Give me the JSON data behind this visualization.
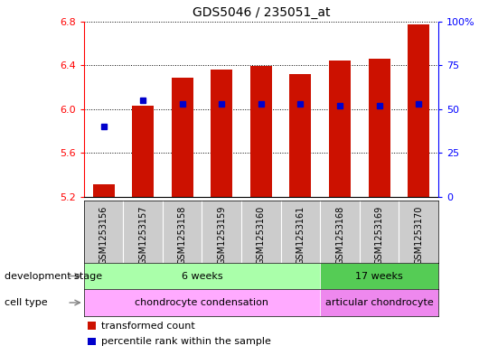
{
  "title": "GDS5046 / 235051_at",
  "samples": [
    "GSM1253156",
    "GSM1253157",
    "GSM1253158",
    "GSM1253159",
    "GSM1253160",
    "GSM1253161",
    "GSM1253168",
    "GSM1253169",
    "GSM1253170"
  ],
  "transformed_count": [
    5.32,
    6.03,
    6.29,
    6.36,
    6.39,
    6.32,
    6.44,
    6.46,
    6.77
  ],
  "percentile_rank": [
    40,
    55,
    53,
    53,
    53,
    53,
    52,
    52,
    53
  ],
  "ylim_left": [
    5.2,
    6.8
  ],
  "ylim_right": [
    0,
    100
  ],
  "yticks_left": [
    5.2,
    5.6,
    6.0,
    6.4,
    6.8
  ],
  "yticks_right": [
    0,
    25,
    50,
    75,
    100
  ],
  "ytick_labels_right": [
    "0",
    "25",
    "50",
    "75",
    "100%"
  ],
  "bar_color": "#cc1100",
  "dot_color": "#0000cc",
  "bar_bottom": 5.2,
  "dev_stage_groups": [
    {
      "label": "6 weeks",
      "start": 0,
      "end": 6,
      "color": "#aaffaa"
    },
    {
      "label": "17 weeks",
      "start": 6,
      "end": 9,
      "color": "#55cc55"
    }
  ],
  "cell_type_groups": [
    {
      "label": "chondrocyte condensation",
      "start": 0,
      "end": 6,
      "color": "#ffaaff"
    },
    {
      "label": "articular chondrocyte",
      "start": 6,
      "end": 9,
      "color": "#ee88ee"
    }
  ],
  "row_labels": [
    "development stage",
    "cell type"
  ],
  "legend_items": [
    {
      "color": "#cc1100",
      "label": "transformed count"
    },
    {
      "color": "#0000cc",
      "label": "percentile rank within the sample"
    }
  ],
  "background_color": "#ffffff",
  "sample_bg_color": "#cccccc",
  "axis_area_color": "#ffffff"
}
